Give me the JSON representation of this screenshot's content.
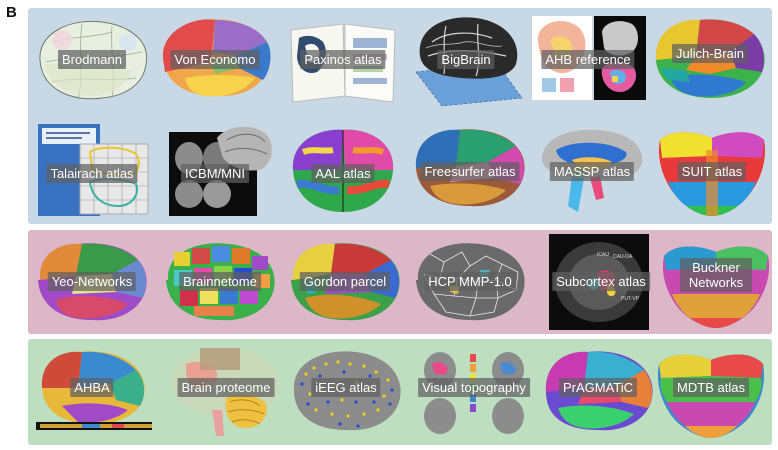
{
  "panel_label": "B",
  "row1": [
    {
      "name": "Brodmann"
    },
    {
      "name": "Von Economo"
    },
    {
      "name": "Paxinos atlas"
    },
    {
      "name": "BigBrain"
    },
    {
      "name": "AHB reference"
    },
    {
      "name": "Julich-Brain"
    }
  ],
  "row2": [
    {
      "name": "Talairach atlas"
    },
    {
      "name": "ICBM/MNI"
    },
    {
      "name": "AAL atlas"
    },
    {
      "name": "Freesurfer atlas"
    },
    {
      "name": "MASSP atlas"
    },
    {
      "name": "SUIT atlas"
    }
  ],
  "row3": [
    {
      "name": "Yeo-Networks"
    },
    {
      "name": "Brainnetome"
    },
    {
      "name": "Gordon parcel"
    },
    {
      "name": "HCP MMP-1.0"
    },
    {
      "name": "Subcortex atlas"
    },
    {
      "name": "Buckner Networks"
    }
  ],
  "row4": [
    {
      "name": "AHBA"
    },
    {
      "name": "Brain proteome"
    },
    {
      "name": "iEEG atlas"
    },
    {
      "name": "Visual topography"
    },
    {
      "name": "PrAGMATiC"
    },
    {
      "name": "MDTB atlas"
    }
  ],
  "colors": {
    "band_anatomy": "#c8d9e5",
    "band_function": "#dcb7c7",
    "band_molecular": "#bddfc0",
    "label_bg": "#5f5f5f"
  }
}
